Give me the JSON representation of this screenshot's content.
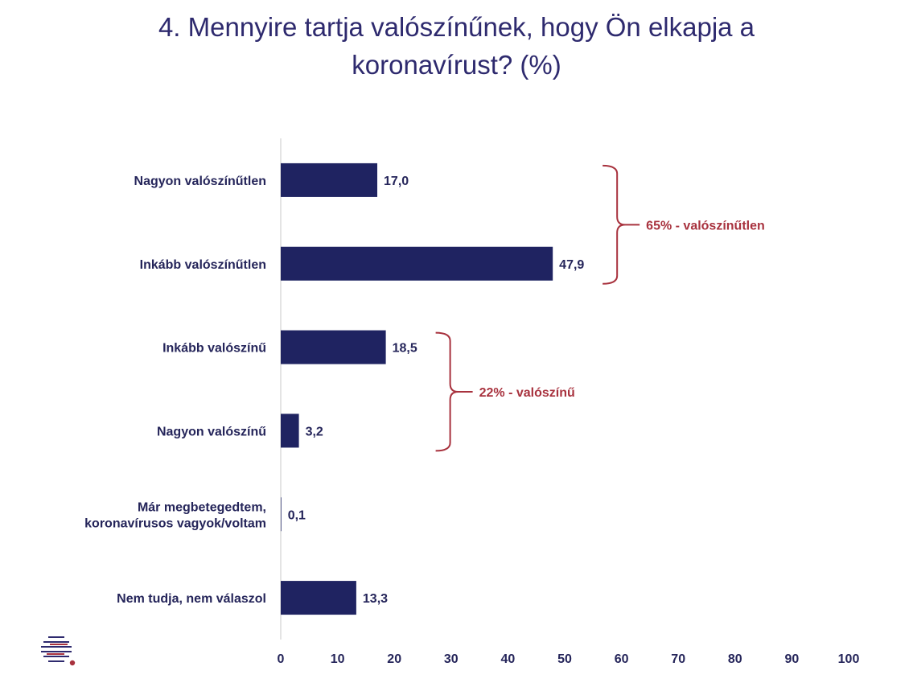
{
  "title_line1": "4. Mennyire tartja valószínűnek, hogy Ön elkapja a",
  "title_line2": "koronavírust? (%)",
  "chart_data": {
    "type": "bar",
    "orientation": "horizontal",
    "categories": [
      [
        "Nagyon valószínűtlen"
      ],
      [
        "Inkább valószínűtlen"
      ],
      [
        "Inkább valószínű"
      ],
      [
        "Nagyon valószínű"
      ],
      [
        "Már megbetegedtem,",
        "koronavírusos vagyok/voltam"
      ],
      [
        "Nem tudja, nem válaszol"
      ]
    ],
    "values": [
      17.0,
      47.9,
      18.5,
      3.2,
      0.1,
      13.3
    ],
    "value_labels": [
      "17,0",
      "47,9",
      "18,5",
      "3,2",
      "0,1",
      "13,3"
    ],
    "xlim": [
      0,
      100
    ],
    "xticks": [
      0,
      10,
      20,
      30,
      40,
      50,
      60,
      70,
      80,
      90,
      100
    ],
    "bar_color": "#1f2361",
    "grid": false,
    "annotations": [
      {
        "text": "65% - valószínűtlen",
        "spans_categories": [
          0,
          1
        ],
        "color": "#a8323e"
      },
      {
        "text": "22% - valószínű",
        "spans_categories": [
          2,
          3
        ],
        "color": "#a8323e"
      }
    ]
  },
  "logo": {
    "icon": "striped-circle-logo-icon",
    "colors": [
      "#2e2a6e",
      "#a8323e"
    ]
  }
}
